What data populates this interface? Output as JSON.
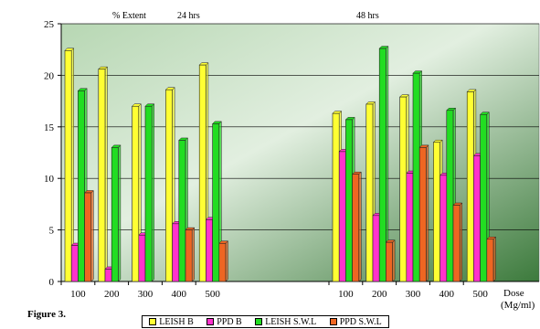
{
  "figure_label": "Figure 3.",
  "chart_data": {
    "type": "bar",
    "annotations": [
      "% Extent",
      "24 hrs",
      "48 hrs"
    ],
    "xlabel": "Dose\n(Mg/ml)",
    "ylabel": "",
    "ylim": [
      0,
      25
    ],
    "yticks": [
      0,
      5,
      10,
      15,
      20,
      25
    ],
    "grid": true,
    "legend_position": "bottom",
    "groups": [
      {
        "name": "24 hrs",
        "categories": [
          "100",
          "200",
          "300",
          "400",
          "500"
        ]
      },
      {
        "name": "48 hrs",
        "categories": [
          "100",
          "200",
          "300",
          "400",
          "500"
        ]
      }
    ],
    "series": [
      {
        "name": "LEISH B",
        "color": "#ffff33",
        "values": [
          22.4,
          20.6,
          17.0,
          18.6,
          21.0,
          16.3,
          17.2,
          17.9,
          13.5,
          18.4
        ]
      },
      {
        "name": "PPD B",
        "color": "#ff33cc",
        "values": [
          3.5,
          1.2,
          4.5,
          5.6,
          6.0,
          12.6,
          6.4,
          10.5,
          10.3,
          12.2
        ]
      },
      {
        "name": "LEISH S.W.L",
        "color": "#22dd22",
        "values": [
          18.5,
          13.0,
          17.0,
          13.7,
          15.3,
          15.7,
          22.6,
          20.2,
          16.6,
          16.2
        ]
      },
      {
        "name": "PPD S.W.L",
        "color": "#ee6622",
        "values": [
          8.6,
          0,
          0,
          5.0,
          3.7,
          10.4,
          3.8,
          13.0,
          7.4,
          4.1
        ]
      }
    ]
  }
}
